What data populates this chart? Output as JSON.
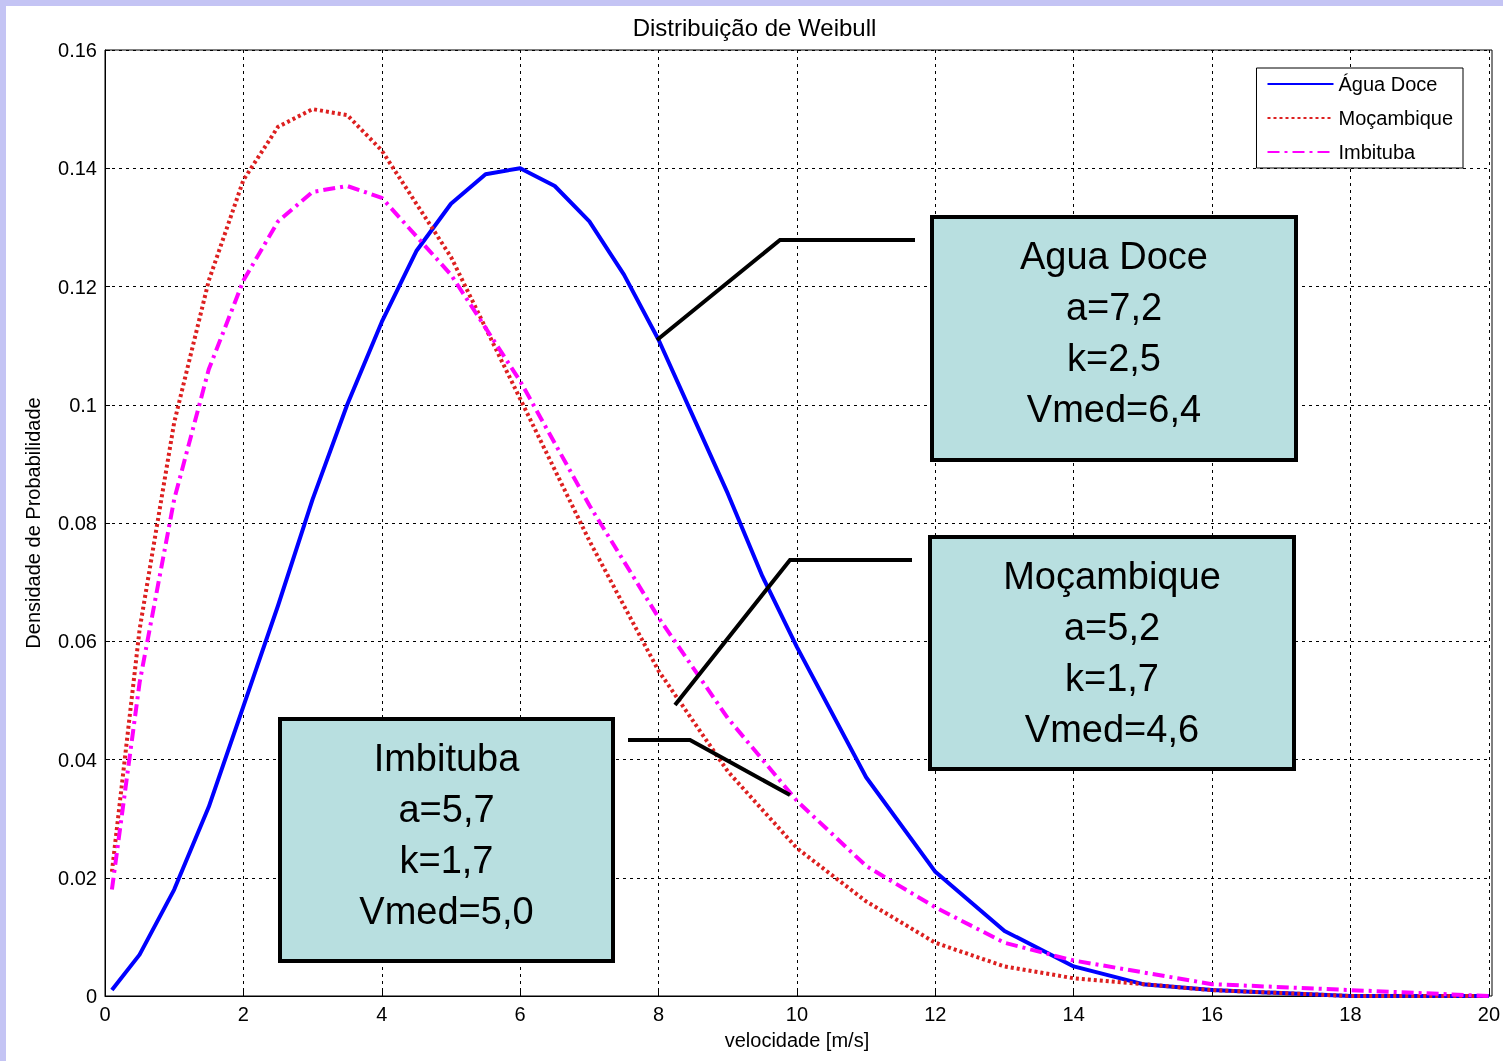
{
  "chart_data": {
    "type": "line",
    "title": "Distribuição de Weibull",
    "xlabel": "velocidade [m/s]",
    "ylabel": "Densidade de Probabilidade",
    "xlim": [
      0,
      20
    ],
    "xticks": [
      0,
      2,
      4,
      6,
      8,
      10,
      12,
      14,
      16,
      18,
      20
    ],
    "ylim": [
      0,
      0.16
    ],
    "yticks": [
      0,
      0.02,
      0.04,
      0.06,
      0.08,
      0.1,
      0.12,
      0.14,
      0.16
    ],
    "grid": true,
    "legend": "top right",
    "marker": "none",
    "series": [
      {
        "name": "Água Doce",
        "color": "#0000ff",
        "line_style": "solid",
        "x": [
          0.1,
          0.5,
          1,
          1.5,
          2,
          2.5,
          3,
          3.5,
          4,
          4.5,
          5,
          5.5,
          6,
          6.5,
          7,
          7.5,
          8,
          8.5,
          9,
          9.5,
          10,
          11,
          12,
          13,
          14,
          15,
          16,
          18,
          20
        ],
        "values": [
          0.001,
          0.007,
          0.018,
          0.032,
          0.049,
          0.066,
          0.084,
          0.1,
          0.114,
          0.126,
          0.134,
          0.139,
          0.14,
          0.137,
          0.131,
          0.122,
          0.111,
          0.098,
          0.085,
          0.071,
          0.059,
          0.037,
          0.021,
          0.011,
          0.005,
          0.002,
          0.001,
          0,
          0
        ]
      },
      {
        "name": "Moçambique",
        "color": "#dd2020",
        "line_style": "dotted",
        "x": [
          0.1,
          0.5,
          1,
          1.5,
          2,
          2.5,
          3,
          3.5,
          4,
          5,
          6,
          7,
          8,
          9,
          10,
          11,
          12,
          13,
          14,
          16,
          18,
          20
        ],
        "values": [
          0.021,
          0.062,
          0.097,
          0.121,
          0.138,
          0.147,
          0.15,
          0.149,
          0.143,
          0.125,
          0.101,
          0.077,
          0.055,
          0.038,
          0.025,
          0.016,
          0.009,
          0.005,
          0.003,
          0.001,
          0,
          0
        ]
      },
      {
        "name": "Imbituba",
        "color": "#ff00ff",
        "line_style": "dashed",
        "x": [
          0.1,
          0.5,
          1,
          1.5,
          2,
          2.5,
          3,
          3.5,
          4,
          5,
          6,
          7,
          8,
          9,
          10,
          11,
          12,
          13,
          14,
          16,
          18,
          20
        ],
        "values": [
          0.018,
          0.053,
          0.084,
          0.106,
          0.121,
          0.131,
          0.136,
          0.137,
          0.135,
          0.122,
          0.104,
          0.083,
          0.064,
          0.047,
          0.033,
          0.022,
          0.015,
          0.009,
          0.006,
          0.002,
          0.001,
          0
        ]
      }
    ],
    "annotations": [
      "Agua Doce\na=7,2\nk=2,5\nVmed=6,4",
      "Moçambique\na=5,2\nk=1,7\nVmed=4,6",
      "Imbituba\na=5,7\nk=1,7\nVmed=5,0"
    ]
  }
}
